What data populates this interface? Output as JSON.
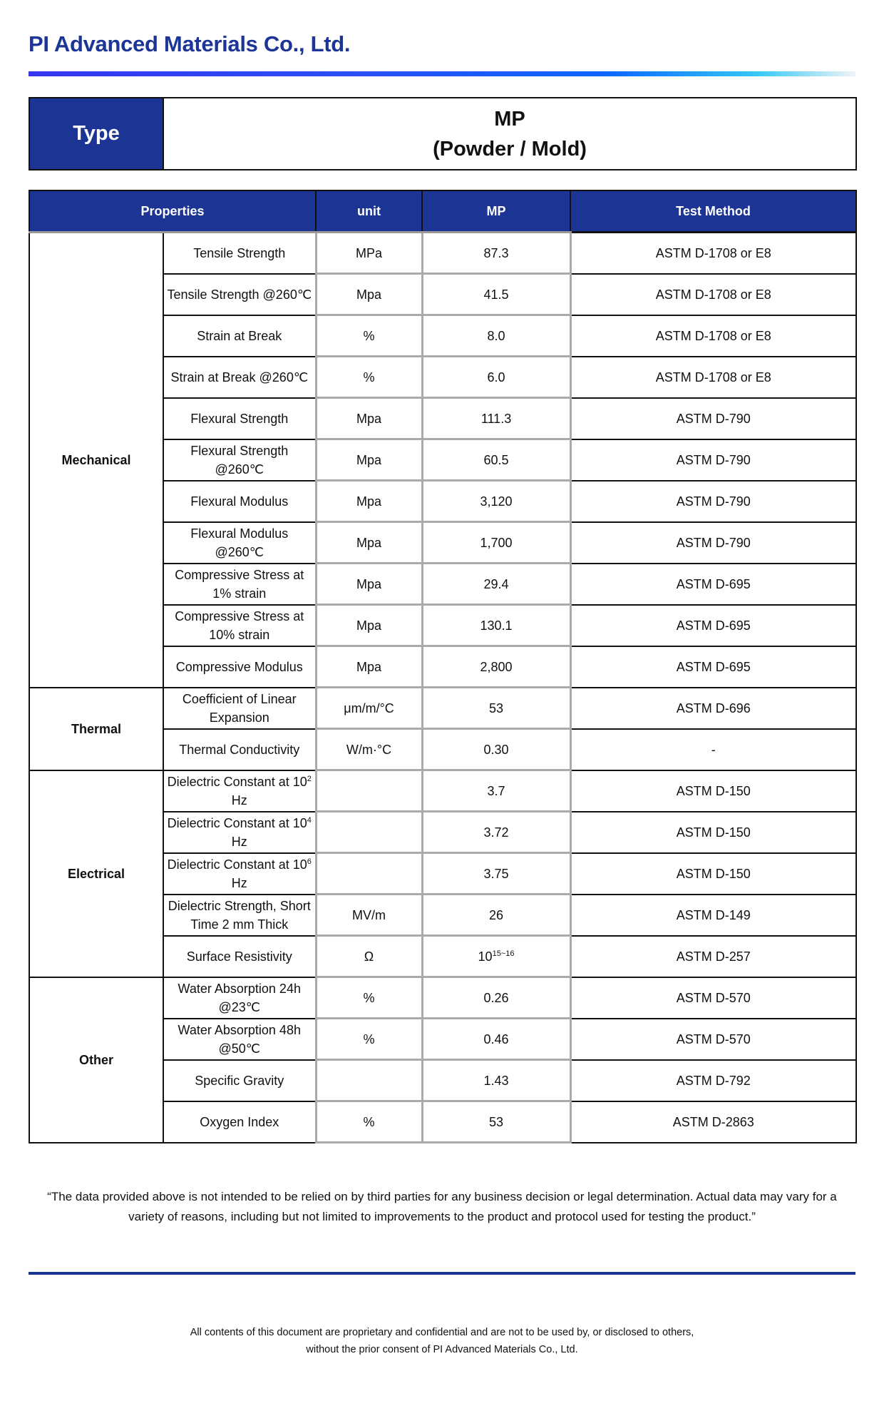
{
  "company": "PI Advanced Materials Co., Ltd.",
  "colors": {
    "brand": "#1c3494",
    "title": "#1c3596"
  },
  "type_box": {
    "label": "Type",
    "value_line1": "MP",
    "value_line2": "(Powder / Mold)"
  },
  "table": {
    "headers": {
      "properties": "Properties",
      "unit": "unit",
      "mp": "MP",
      "test_method": "Test Method"
    },
    "groups": [
      {
        "category": "Mechanical",
        "rows": [
          {
            "property": "Tensile Strength",
            "unit": "MPa",
            "value": "87.3",
            "method": "ASTM D-1708 or E8"
          },
          {
            "property": "Tensile Strength @260℃",
            "unit": "Mpa",
            "value": "41.5",
            "method": "ASTM D-1708 or E8"
          },
          {
            "property": "Strain at Break",
            "unit": "%",
            "value": "8.0",
            "method": "ASTM D-1708 or E8"
          },
          {
            "property": "Strain at Break @260℃",
            "unit": "%",
            "value": "6.0",
            "method": "ASTM D-1708 or E8"
          },
          {
            "property": "Flexural Strength",
            "unit": "Mpa",
            "value": "111.3",
            "method": "ASTM D-790"
          },
          {
            "property": "Flexural Strength @260℃",
            "unit": "Mpa",
            "value": "60.5",
            "method": "ASTM D-790"
          },
          {
            "property": "Flexural Modulus",
            "unit": "Mpa",
            "value": "3,120",
            "method": "ASTM D-790"
          },
          {
            "property": "Flexural Modulus @260℃",
            "unit": "Mpa",
            "value": "1,700",
            "method": "ASTM D-790"
          },
          {
            "property": "Compressive Stress at 1% strain",
            "unit": "Mpa",
            "value": "29.4",
            "method": "ASTM D-695"
          },
          {
            "property": "Compressive Stress at 10% strain",
            "unit": "Mpa",
            "value": "130.1",
            "method": "ASTM D-695"
          },
          {
            "property": "Compressive Modulus",
            "unit": "Mpa",
            "value": "2,800",
            "method": "ASTM D-695"
          }
        ]
      },
      {
        "category": "Thermal",
        "rows": [
          {
            "property": "Coefficient of Linear Expansion",
            "unit": "μm/m/°C",
            "value": "53",
            "method": "ASTM D-696"
          },
          {
            "property": "Thermal Conductivity",
            "unit": "W/m·°C",
            "value": "0.30",
            "method": "-"
          }
        ]
      },
      {
        "category": "Electrical",
        "rows": [
          {
            "property": "Dielectric Constant at 10",
            "property_sup": "2",
            "property_suffix": " Hz",
            "unit": "",
            "value": "3.7",
            "method": "ASTM D-150"
          },
          {
            "property": "Dielectric Constant at 10",
            "property_sup": "4",
            "property_suffix": " Hz",
            "unit": "",
            "value": "3.72",
            "method": "ASTM D-150"
          },
          {
            "property": "Dielectric Constant at 10",
            "property_sup": "6",
            "property_suffix": " Hz",
            "unit": "",
            "value": "3.75",
            "method": "ASTM D-150"
          },
          {
            "property": "Dielectric Strength, Short Time 2 mm Thick",
            "unit": "MV/m",
            "value": "26",
            "method": "ASTM D-149"
          },
          {
            "property": "Surface Resistivity",
            "unit": "Ω",
            "value": "10",
            "value_sup": "15~16",
            "method": "ASTM D-257"
          }
        ]
      },
      {
        "category": "Other",
        "rows": [
          {
            "property": "Water Absorption 24h @23℃",
            "unit": "%",
            "value": "0.26",
            "method": "ASTM D-570"
          },
          {
            "property": "Water Absorption 48h @50℃",
            "unit": "%",
            "value": "0.46",
            "method": "ASTM D-570"
          },
          {
            "property": "Specific Gravity",
            "unit": "",
            "value": "1.43",
            "method": "ASTM D-792"
          },
          {
            "property": "Oxygen Index",
            "unit": "%",
            "value": "53",
            "method": "ASTM D-2863"
          }
        ]
      }
    ]
  },
  "disclaimer": "“The data provided above is not intended to be relied on by third parties for any business decision or legal determination. Actual data may vary for a variety of reasons, including but not limited to improvements to the product and protocol used for testing the product.”",
  "footer": {
    "line1": "All contents of this document are proprietary and confidential and are not to be used by, or disclosed to others,",
    "line2": "without the prior consent of PI Advanced Materials Co., Ltd."
  }
}
